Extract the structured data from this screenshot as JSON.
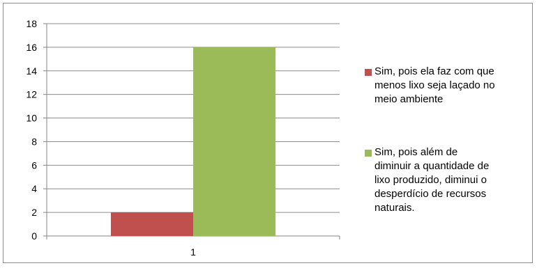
{
  "chart_data": {
    "type": "bar",
    "categories": [
      "1"
    ],
    "series": [
      {
        "name": "Sim, pois ela faz com que\nmenos lixo seja laçado no\nmeio ambiente",
        "values": [
          2
        ],
        "color": "#c0504d"
      },
      {
        "name": "Sim, pois além de\ndiminuir a quantidade de\nlixo produzido, diminui o\ndesperdício de recursos\nnaturais.",
        "values": [
          16
        ],
        "color": "#9bbb59"
      }
    ],
    "yticks": [
      "0",
      "2",
      "4",
      "6",
      "8",
      "10",
      "12",
      "14",
      "16",
      "18"
    ],
    "ylim": [
      0,
      18
    ],
    "grid": true,
    "legend_position": "right",
    "title": "",
    "xlabel": "",
    "ylabel": ""
  }
}
